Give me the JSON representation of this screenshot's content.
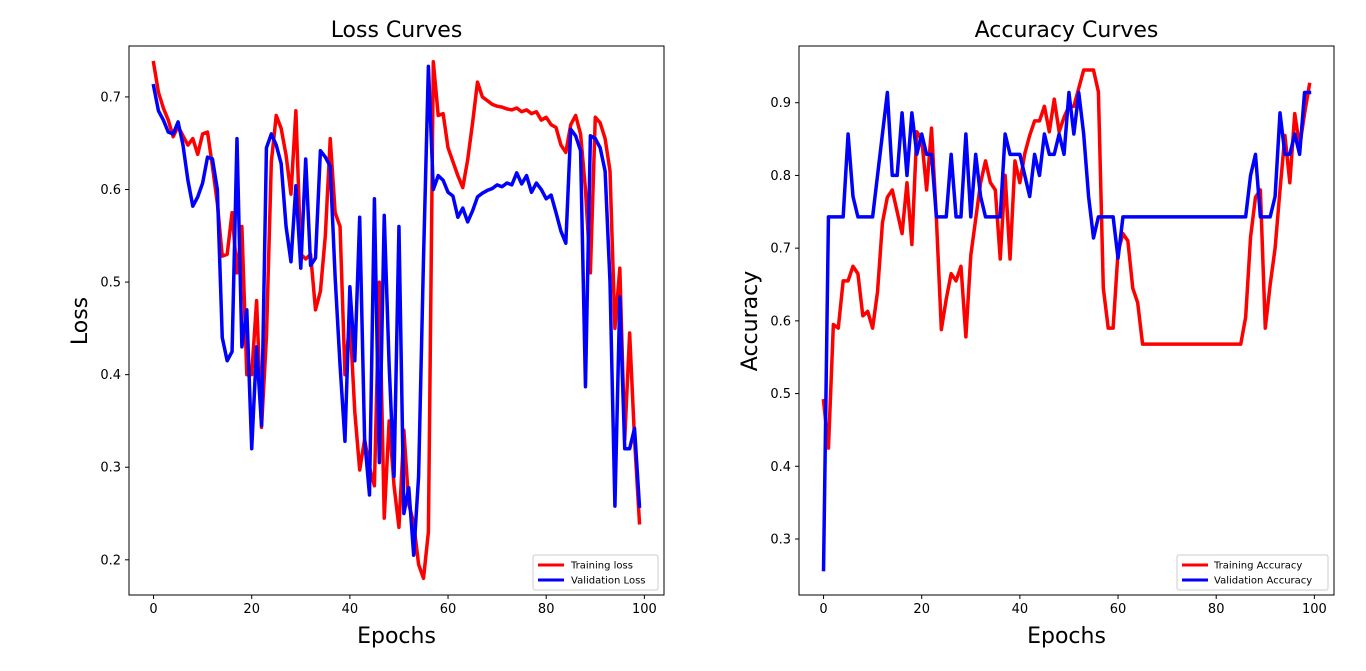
{
  "chart_data": [
    {
      "type": "line",
      "title": "Loss Curves",
      "xlabel": "Epochs",
      "ylabel": "Loss",
      "xlim": [
        -5,
        104
      ],
      "ylim": [
        0.162,
        0.755
      ],
      "xticks": [
        0,
        20,
        40,
        60,
        80,
        100
      ],
      "yticks": [
        0.2,
        0.3,
        0.4,
        0.5,
        0.6,
        0.7
      ],
      "grid": false,
      "legend_position": "lower-right",
      "series": [
        {
          "name": "Training loss",
          "color": "#ff0000",
          "x": [
            0,
            1,
            2,
            3,
            4,
            5,
            6,
            7,
            8,
            9,
            10,
            11,
            12,
            13,
            14,
            15,
            16,
            17,
            18,
            19,
            20,
            21,
            22,
            23,
            24,
            25,
            26,
            27,
            28,
            29,
            30,
            31,
            32,
            33,
            34,
            35,
            36,
            37,
            38,
            39,
            40,
            41,
            42,
            43,
            44,
            45,
            46,
            47,
            48,
            49,
            50,
            51,
            52,
            53,
            54,
            55,
            56,
            57,
            58,
            59,
            60,
            61,
            62,
            63,
            64,
            65,
            66,
            67,
            68,
            69,
            70,
            71,
            72,
            73,
            74,
            75,
            76,
            77,
            78,
            79,
            80,
            81,
            82,
            83,
            84,
            85,
            86,
            87,
            88,
            89,
            90,
            91,
            92,
            93,
            94,
            95,
            96,
            97,
            98,
            99
          ],
          "values": [
            0.737,
            0.705,
            0.688,
            0.675,
            0.657,
            0.668,
            0.658,
            0.648,
            0.655,
            0.638,
            0.66,
            0.662,
            0.625,
            0.585,
            0.528,
            0.53,
            0.575,
            0.51,
            0.56,
            0.4,
            0.4,
            0.48,
            0.343,
            0.44,
            0.63,
            0.68,
            0.666,
            0.637,
            0.595,
            0.685,
            0.53,
            0.525,
            0.53,
            0.47,
            0.49,
            0.55,
            0.655,
            0.575,
            0.56,
            0.4,
            0.46,
            0.36,
            0.297,
            0.33,
            0.3,
            0.28,
            0.5,
            0.245,
            0.35,
            0.28,
            0.235,
            0.34,
            0.26,
            0.24,
            0.195,
            0.18,
            0.23,
            0.738,
            0.68,
            0.682,
            0.645,
            0.63,
            0.615,
            0.602,
            0.632,
            0.672,
            0.716,
            0.7,
            0.696,
            0.692,
            0.69,
            0.689,
            0.687,
            0.686,
            0.688,
            0.684,
            0.686,
            0.682,
            0.684,
            0.675,
            0.678,
            0.67,
            0.667,
            0.648,
            0.64,
            0.67,
            0.68,
            0.66,
            0.6,
            0.51,
            0.678,
            0.672,
            0.655,
            0.62,
            0.45,
            0.515,
            0.33,
            0.445,
            0.33,
            0.24
          ]
        },
        {
          "name": "Validation Loss",
          "color": "#0000ff",
          "x": [
            0,
            1,
            2,
            3,
            4,
            5,
            6,
            7,
            8,
            9,
            10,
            11,
            12,
            13,
            14,
            15,
            16,
            17,
            18,
            19,
            20,
            21,
            22,
            23,
            24,
            25,
            26,
            27,
            28,
            29,
            30,
            31,
            32,
            33,
            34,
            35,
            36,
            37,
            38,
            39,
            40,
            41,
            42,
            43,
            44,
            45,
            46,
            47,
            48,
            49,
            50,
            51,
            52,
            53,
            54,
            55,
            56,
            57,
            58,
            59,
            60,
            61,
            62,
            63,
            64,
            65,
            66,
            67,
            68,
            69,
            70,
            71,
            72,
            73,
            74,
            75,
            76,
            77,
            78,
            79,
            80,
            81,
            82,
            83,
            84,
            85,
            86,
            87,
            88,
            89,
            90,
            91,
            92,
            93,
            94,
            95,
            96,
            97,
            98,
            99
          ],
          "values": [
            0.712,
            0.685,
            0.675,
            0.662,
            0.66,
            0.673,
            0.648,
            0.61,
            0.582,
            0.592,
            0.607,
            0.635,
            0.633,
            0.6,
            0.44,
            0.415,
            0.425,
            0.655,
            0.43,
            0.47,
            0.32,
            0.43,
            0.345,
            0.645,
            0.66,
            0.648,
            0.628,
            0.56,
            0.522,
            0.604,
            0.515,
            0.633,
            0.518,
            0.526,
            0.642,
            0.635,
            0.625,
            0.505,
            0.41,
            0.328,
            0.495,
            0.415,
            0.57,
            0.33,
            0.27,
            0.59,
            0.305,
            0.572,
            0.41,
            0.29,
            0.56,
            0.25,
            0.278,
            0.205,
            0.29,
            0.525,
            0.733,
            0.6,
            0.615,
            0.61,
            0.597,
            0.593,
            0.57,
            0.58,
            0.565,
            0.577,
            0.592,
            0.596,
            0.599,
            0.601,
            0.605,
            0.603,
            0.607,
            0.605,
            0.618,
            0.606,
            0.615,
            0.597,
            0.607,
            0.6,
            0.59,
            0.594,
            0.575,
            0.555,
            0.542,
            0.665,
            0.658,
            0.642,
            0.387,
            0.658,
            0.655,
            0.645,
            0.62,
            0.5,
            0.258,
            0.484,
            0.32,
            0.32,
            0.342,
            0.258
          ]
        }
      ]
    },
    {
      "type": "line",
      "title": "Accuracy Curves",
      "xlabel": "Epochs",
      "ylabel": "Accuracy",
      "xlim": [
        -5,
        104
      ],
      "ylim": [
        0.223,
        0.978
      ],
      "xticks": [
        0,
        20,
        40,
        60,
        80,
        100
      ],
      "yticks": [
        0.3,
        0.4,
        0.5,
        0.6,
        0.7,
        0.8,
        0.9
      ],
      "grid": false,
      "legend_position": "lower-right",
      "series": [
        {
          "name": "Training Accuracy",
          "color": "#ff0000",
          "x": [
            0,
            1,
            2,
            3,
            4,
            5,
            6,
            7,
            8,
            9,
            10,
            11,
            12,
            13,
            14,
            15,
            16,
            17,
            18,
            19,
            20,
            21,
            22,
            23,
            24,
            25,
            26,
            27,
            28,
            29,
            30,
            31,
            32,
            33,
            34,
            35,
            36,
            37,
            38,
            39,
            40,
            41,
            42,
            43,
            44,
            45,
            46,
            47,
            48,
            49,
            50,
            51,
            52,
            53,
            54,
            55,
            56,
            57,
            58,
            59,
            60,
            61,
            62,
            63,
            64,
            65,
            66,
            67,
            68,
            69,
            70,
            71,
            72,
            73,
            74,
            75,
            76,
            77,
            78,
            79,
            80,
            81,
            82,
            83,
            84,
            85,
            86,
            87,
            88,
            89,
            90,
            91,
            92,
            93,
            94,
            95,
            96,
            97,
            98,
            99
          ],
          "values": [
            0.49,
            0.425,
            0.595,
            0.59,
            0.655,
            0.655,
            0.675,
            0.665,
            0.607,
            0.613,
            0.59,
            0.64,
            0.735,
            0.77,
            0.78,
            0.75,
            0.72,
            0.79,
            0.705,
            0.86,
            0.85,
            0.78,
            0.865,
            0.74,
            0.588,
            0.63,
            0.665,
            0.655,
            0.675,
            0.578,
            0.69,
            0.74,
            0.79,
            0.82,
            0.79,
            0.78,
            0.685,
            0.8,
            0.685,
            0.82,
            0.79,
            0.83,
            0.855,
            0.875,
            0.875,
            0.895,
            0.86,
            0.905,
            0.86,
            0.88,
            0.895,
            0.895,
            0.92,
            0.945,
            0.945,
            0.945,
            0.915,
            0.645,
            0.59,
            0.59,
            0.695,
            0.72,
            0.71,
            0.645,
            0.625,
            0.568,
            0.568,
            0.568,
            0.568,
            0.568,
            0.568,
            0.568,
            0.568,
            0.568,
            0.568,
            0.568,
            0.568,
            0.568,
            0.568,
            0.568,
            0.568,
            0.568,
            0.568,
            0.568,
            0.568,
            0.568,
            0.605,
            0.715,
            0.77,
            0.78,
            0.59,
            0.65,
            0.7,
            0.78,
            0.855,
            0.79,
            0.885,
            0.84,
            0.885,
            0.925
          ]
        },
        {
          "name": "Validation Accuracy",
          "color": "#0000ff",
          "x": [
            0,
            1,
            2,
            3,
            4,
            5,
            6,
            7,
            8,
            9,
            10,
            11,
            12,
            13,
            14,
            15,
            16,
            17,
            18,
            19,
            20,
            21,
            22,
            23,
            24,
            25,
            26,
            27,
            28,
            29,
            30,
            31,
            32,
            33,
            34,
            35,
            36,
            37,
            38,
            39,
            40,
            41,
            42,
            43,
            44,
            45,
            46,
            47,
            48,
            49,
            50,
            51,
            52,
            53,
            54,
            55,
            56,
            57,
            58,
            59,
            60,
            61,
            62,
            63,
            64,
            65,
            66,
            67,
            68,
            69,
            70,
            71,
            72,
            73,
            74,
            75,
            76,
            77,
            78,
            79,
            80,
            81,
            82,
            83,
            84,
            85,
            86,
            87,
            88,
            89,
            90,
            91,
            92,
            93,
            94,
            95,
            96,
            97,
            98,
            99
          ],
          "values": [
            0.258,
            0.743,
            0.743,
            0.743,
            0.743,
            0.857,
            0.771,
            0.743,
            0.743,
            0.743,
            0.743,
            0.8,
            0.857,
            0.914,
            0.8,
            0.8,
            0.886,
            0.8,
            0.886,
            0.829,
            0.857,
            0.829,
            0.829,
            0.743,
            0.743,
            0.743,
            0.829,
            0.743,
            0.743,
            0.857,
            0.743,
            0.829,
            0.771,
            0.743,
            0.743,
            0.743,
            0.743,
            0.857,
            0.829,
            0.829,
            0.829,
            0.8,
            0.771,
            0.829,
            0.8,
            0.857,
            0.829,
            0.829,
            0.857,
            0.829,
            0.914,
            0.857,
            0.914,
            0.857,
            0.771,
            0.714,
            0.743,
            0.743,
            0.743,
            0.743,
            0.686,
            0.743,
            0.743,
            0.743,
            0.743,
            0.743,
            0.743,
            0.743,
            0.743,
            0.743,
            0.743,
            0.743,
            0.743,
            0.743,
            0.743,
            0.743,
            0.743,
            0.743,
            0.743,
            0.743,
            0.743,
            0.743,
            0.743,
            0.743,
            0.743,
            0.743,
            0.743,
            0.8,
            0.829,
            0.743,
            0.743,
            0.743,
            0.771,
            0.886,
            0.829,
            0.829,
            0.857,
            0.829,
            0.914,
            0.914
          ]
        }
      ]
    }
  ]
}
